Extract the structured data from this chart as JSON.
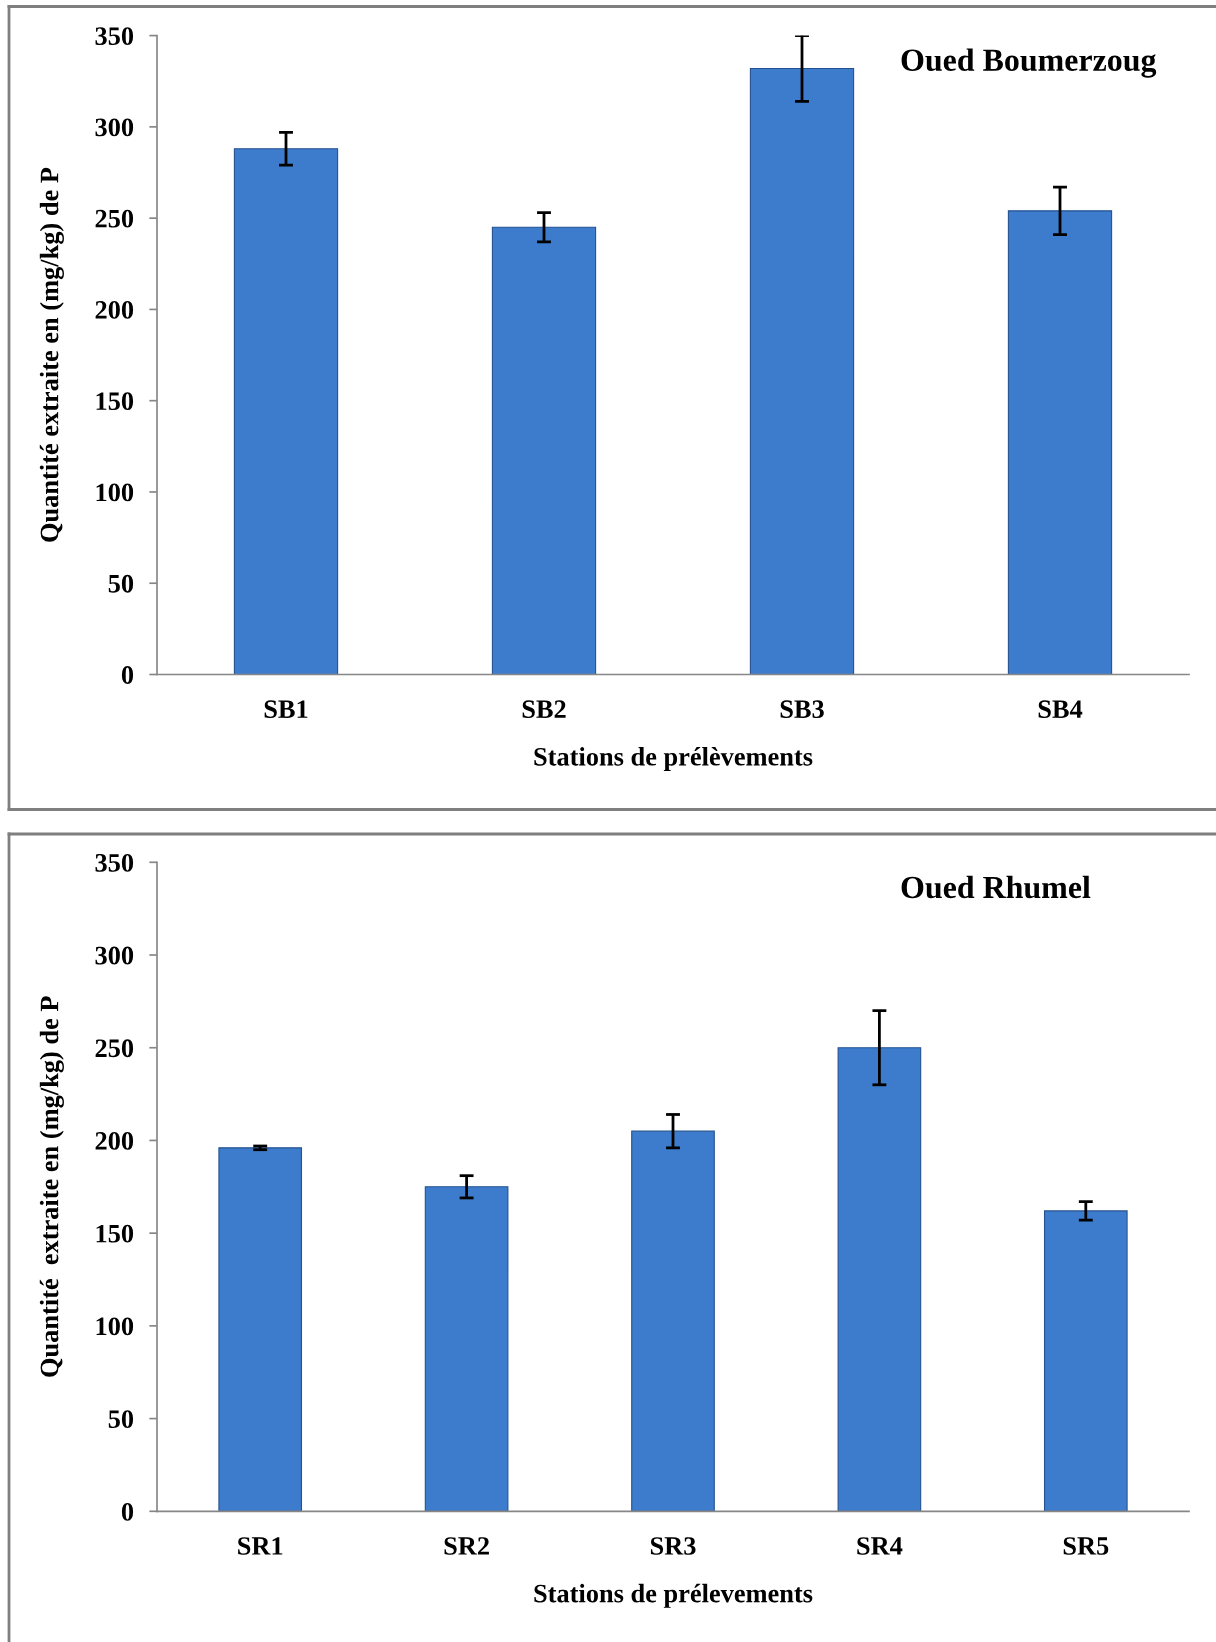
{
  "chart_data": [
    {
      "type": "bar",
      "title": "Oued Boumerzoug",
      "xlabel": "Stations de prélèvements",
      "ylabel": "Quantité extraite en (mg/kg) de P",
      "categories": [
        "SB1",
        "SB2",
        "SB3",
        "SB4"
      ],
      "values": [
        288,
        245,
        332,
        254
      ],
      "errors": [
        9,
        8,
        18,
        13
      ],
      "color": "#3d7ccc",
      "ylim": [
        0,
        350
      ],
      "yticks": [
        0,
        50,
        100,
        150,
        200,
        250,
        300,
        350
      ]
    },
    {
      "type": "bar",
      "title": "Oued Rhumel",
      "xlabel": "Stations de prélevements",
      "ylabel": "Quantité  extraite en (mg/kg) de P",
      "categories": [
        "SR1",
        "SR2",
        "SR3",
        "SR4",
        "SR5"
      ],
      "values": [
        196,
        175,
        205,
        250,
        162
      ],
      "errors": [
        1,
        6,
        9,
        20,
        5
      ],
      "color": "#3d7ccc",
      "ylim": [
        0,
        350
      ],
      "yticks": [
        0,
        50,
        100,
        150,
        200,
        250,
        300,
        350
      ]
    }
  ]
}
